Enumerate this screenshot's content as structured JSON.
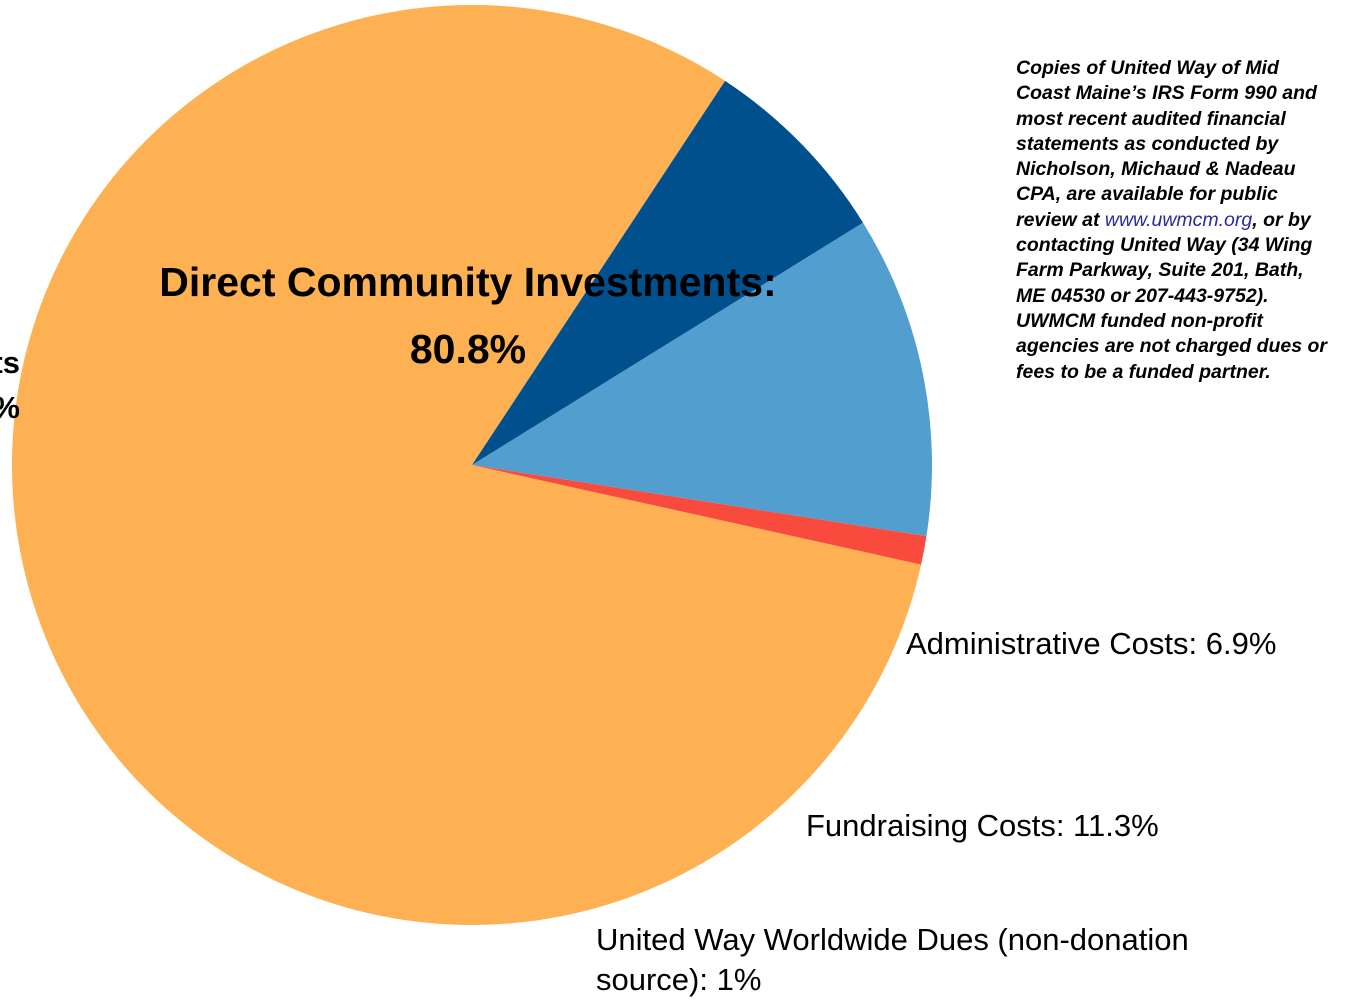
{
  "chart_data": {
    "type": "pie",
    "slices": [
      {
        "label": "Direct Community Investments:",
        "value_label": "80.8%",
        "value": 80.8,
        "color": "#FDB152"
      },
      {
        "label": "Administrative Costs: 6.9%",
        "value": 6.9,
        "color": "#00508E"
      },
      {
        "label": "Fundraising Costs: 11.3%",
        "value": 11.3,
        "color": "#529ECF"
      },
      {
        "label": "United Way Worldwide Dues (non-donation source): 1%",
        "value": 1.0,
        "color": "#F94A3E"
      }
    ],
    "start_angle_deg": 102.5,
    "direction": "clockwise"
  },
  "note": {
    "text_before_link": "Copies of United Way of Mid Coast Maine’s IRS Form 990 and most recent audited financial statements as conducted by Nicholson, Michaud & Nadeau CPA, are available for public review at ",
    "link": "www.uwmcm.org",
    "text_after_link": ", or by contacting United Way (34 Wing Farm Parkway, Suite 201, Bath, ME 04530 or 207-443-9752). UWMCM funded non-profit agencies are not charged dues or fees to be a funded partner."
  },
  "labels": {
    "dues_line1": "United Way Worldwide Dues (non-donation",
    "dues_line2": "source): 1%"
  },
  "cut_off_label": {
    "line1": "ts",
    "line2": "",
    "line3": "%"
  }
}
